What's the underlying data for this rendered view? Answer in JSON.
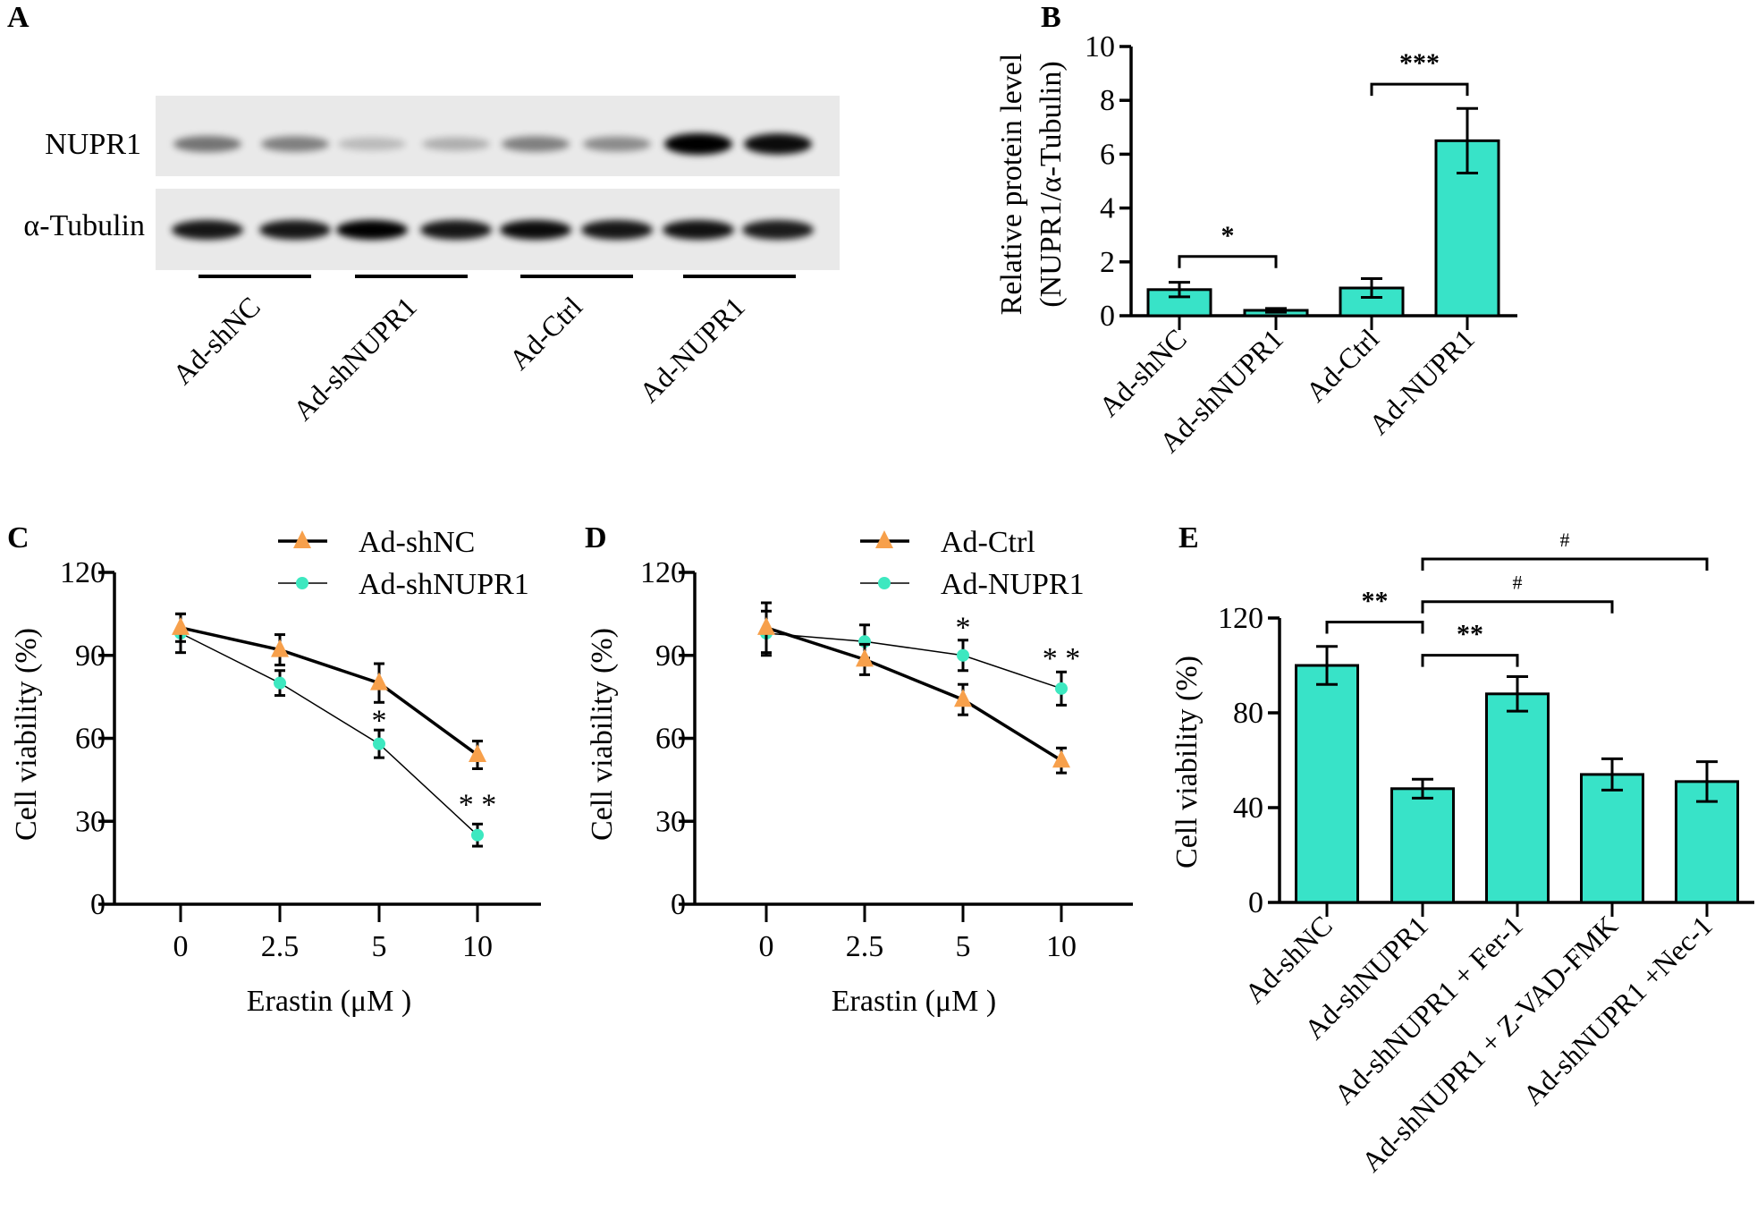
{
  "colors": {
    "teal": "#38E3C8",
    "orange": "#F7A04B",
    "mint": "#3DE8C0",
    "axis": "#000000",
    "blot_bg": "#E9E9E9"
  },
  "panels": {
    "a": "A",
    "b": "B",
    "c": "C",
    "d": "D",
    "e": "E"
  },
  "blot": {
    "rows": [
      "NUPR1",
      "α-Tubulin"
    ],
    "groups": [
      "Ad-shNC",
      "Ad-shNUPR1",
      "Ad-Ctrl",
      "Ad-NUPR1"
    ],
    "nupr1_band_intensity": [
      0.5,
      0.45,
      0.2,
      0.25,
      0.45,
      0.4,
      1.0,
      0.95
    ],
    "tubulin_band_intensity": [
      0.9,
      0.9,
      1.0,
      0.9,
      0.95,
      0.9,
      0.92,
      0.88
    ]
  },
  "chart_data": [
    {
      "panel": "B",
      "type": "bar",
      "categories": [
        "Ad-shNC",
        "Ad-shNUPR1",
        "Ad-Ctrl",
        "Ad-NUPR1"
      ],
      "values": [
        0.97,
        0.2,
        1.03,
        6.5
      ],
      "errors": [
        0.27,
        0.07,
        0.35,
        1.2
      ],
      "ylabel": "Relative protein level",
      "ylabel2": "(NUPR1/α-Tubulin)",
      "xlabel": "",
      "ylim": [
        0,
        10
      ],
      "yticks": [
        "0",
        "2",
        "4",
        "6",
        "8",
        "10"
      ],
      "significance": [
        {
          "from": 0,
          "to": 1,
          "y": 2.2,
          "label": "*"
        },
        {
          "from": 2,
          "to": 3,
          "y": 8.6,
          "label": "***"
        }
      ]
    },
    {
      "panel": "C",
      "type": "line",
      "x": [
        "0",
        "2.5",
        "5",
        "10"
      ],
      "xlabel": "Erastin (μM )",
      "ylabel": "Cell viability (%)",
      "ylim": [
        0,
        120
      ],
      "yticks": [
        "0",
        "30",
        "60",
        "90",
        "120"
      ],
      "legend": "top-right",
      "series": [
        {
          "name": "Ad-shNC",
          "values": [
            100,
            92,
            80,
            54
          ],
          "errors": [
            5,
            5.5,
            7,
            5
          ],
          "marker": "triangle",
          "color": "#F7A04B"
        },
        {
          "name": "Ad-shNUPR1",
          "values": [
            98,
            80,
            58,
            25
          ],
          "errors": [
            7,
            4.5,
            5,
            4
          ],
          "marker": "circle",
          "color": "#3DE8C0"
        }
      ],
      "annotations": [
        {
          "x_index": 2,
          "y": 67.5,
          "label": "*"
        },
        {
          "x_index": 3,
          "y": 37,
          "label": "* *"
        }
      ]
    },
    {
      "panel": "D",
      "type": "line",
      "x": [
        "0",
        "2.5",
        "5",
        "10"
      ],
      "xlabel": "Erastin (μM )",
      "ylabel": "Cell viability (%)",
      "ylim": [
        0,
        120
      ],
      "yticks": [
        "0",
        "30",
        "60",
        "90",
        "120"
      ],
      "legend": "top-right",
      "series": [
        {
          "name": "Ad-Ctrl",
          "values": [
            100,
            88.5,
            74,
            52
          ],
          "errors": [
            9,
            5.5,
            5.5,
            4.5
          ],
          "marker": "triangle",
          "color": "#F7A04B"
        },
        {
          "name": "Ad-NUPR1",
          "values": [
            98,
            95,
            90,
            78
          ],
          "errors": [
            8,
            6,
            5.5,
            6
          ],
          "marker": "circle",
          "color": "#3DE8C0"
        }
      ],
      "annotations": [
        {
          "x_index": 2,
          "y": 101,
          "label": "*"
        },
        {
          "x_index": 3,
          "y": 90,
          "label": "* *"
        }
      ]
    },
    {
      "panel": "E",
      "type": "bar",
      "categories": [
        "Ad-shNC",
        "Ad-shNUPR1",
        "Ad-shNUPR1 + Fer-1",
        "Ad-shNUPR1 + Z-VAD-FMK",
        "Ad-shNUPR1 +Nec-1"
      ],
      "values": [
        100,
        48,
        88,
        54,
        51
      ],
      "errors": [
        8,
        4,
        7.3,
        6.6,
        8.4
      ],
      "ylabel": "Cell viability (%)",
      "xlabel": "",
      "ylim": [
        0,
        120
      ],
      "yticks": [
        "0",
        "40",
        "80",
        "120"
      ],
      "significance": [
        {
          "from": 0,
          "to": 1,
          "y": 118.3,
          "label": "**"
        },
        {
          "from": 1,
          "to": 2,
          "y": 104.3,
          "label": "**"
        },
        {
          "from": 1,
          "to": 3,
          "y": 126.9,
          "label": "#"
        },
        {
          "from": 1,
          "to": 4,
          "y": 144.9,
          "label": "#"
        }
      ]
    }
  ]
}
